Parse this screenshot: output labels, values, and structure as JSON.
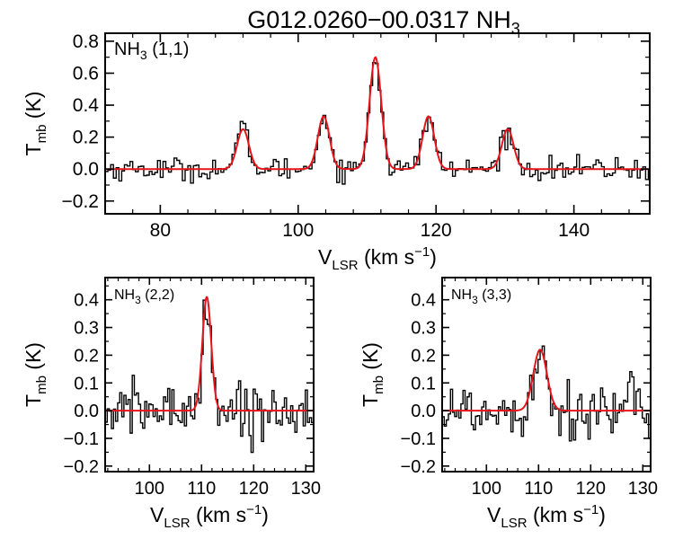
{
  "title": "G012.0260−00.0317 NH",
  "title_sub": "3",
  "colors": {
    "data": "#000000",
    "fit": "#e8141c",
    "axes": "#000000"
  },
  "chart_data": [
    {
      "type": "line",
      "panel": "top",
      "label_main": "NH",
      "label_sub": "3",
      "label_suffix": " (1,1)",
      "ylabel_main": "T",
      "ylabel_sub": "mb",
      "ylabel_suffix": " (K)",
      "xlabel_main": "V",
      "xlabel_sub": "LSR",
      "xlabel_suffix": " (km s",
      "xlabel_sup": "−1",
      "xlabel_close": ")",
      "xlim": [
        72,
        151
      ],
      "ylim": [
        -0.28,
        0.85
      ],
      "xticks": [
        80,
        100,
        120,
        140
      ],
      "xtick_labels": [
        "80",
        "100",
        "120",
        "140"
      ],
      "yticks": [
        -0.2,
        0.0,
        0.2,
        0.4,
        0.6,
        0.8
      ],
      "ytick_labels": [
        "−0.2",
        "0.0",
        "0.2",
        "0.4",
        "0.6",
        "0.8"
      ],
      "channel_width": 0.4,
      "noise_rms": 0.035,
      "fit_components": [
        {
          "center": 92.0,
          "amplitude": 0.25,
          "sigma": 0.85
        },
        {
          "center": 103.7,
          "amplitude": 0.33,
          "sigma": 0.85
        },
        {
          "center": 111.2,
          "amplitude": 0.7,
          "sigma": 0.85
        },
        {
          "center": 118.9,
          "amplitude": 0.33,
          "sigma": 0.85
        },
        {
          "center": 130.4,
          "amplitude": 0.25,
          "sigma": 0.85
        }
      ]
    },
    {
      "type": "line",
      "panel": "bottom-left",
      "label_main": "NH",
      "label_sub": "3",
      "label_suffix": " (2,2)",
      "ylabel_main": "T",
      "ylabel_sub": "mb",
      "ylabel_suffix": " (K)",
      "xlabel_main": "V",
      "xlabel_sub": "LSR",
      "xlabel_suffix": " (km s",
      "xlabel_sup": "−1",
      "xlabel_close": ")",
      "xlim": [
        91.5,
        131.5
      ],
      "ylim": [
        -0.22,
        0.48
      ],
      "xticks": [
        100,
        110,
        120,
        130
      ],
      "xtick_labels": [
        "100",
        "110",
        "120",
        "130"
      ],
      "yticks": [
        -0.2,
        -0.1,
        0.0,
        0.1,
        0.2,
        0.3,
        0.4
      ],
      "ytick_labels": [
        "−0.2",
        "−0.1",
        "0.0",
        "0.1",
        "0.2",
        "0.3",
        "0.4"
      ],
      "channel_width": 0.4,
      "noise_rms": 0.05,
      "fit_components": [
        {
          "center": 111.0,
          "amplitude": 0.41,
          "sigma": 0.85
        }
      ]
    },
    {
      "type": "line",
      "panel": "bottom-right",
      "label_main": "NH",
      "label_sub": "3",
      "label_suffix": " (3,3)",
      "ylabel_main": "T",
      "ylabel_sub": "mb",
      "ylabel_suffix": " (K)",
      "xlabel_main": "V",
      "xlabel_sub": "LSR",
      "xlabel_suffix": " (km s",
      "xlabel_sup": "−1",
      "xlabel_close": ")",
      "xlim": [
        91.5,
        131.5
      ],
      "ylim": [
        -0.22,
        0.48
      ],
      "xticks": [
        100,
        110,
        120,
        130
      ],
      "xtick_labels": [
        "100",
        "110",
        "120",
        "130"
      ],
      "yticks": [
        -0.2,
        -0.1,
        0.0,
        0.1,
        0.2,
        0.3,
        0.4
      ],
      "ytick_labels": [
        "−0.2",
        "−0.1",
        "0.0",
        "0.1",
        "0.2",
        "0.3",
        "0.4"
      ],
      "channel_width": 0.4,
      "noise_rms": 0.055,
      "fit_components": [
        {
          "center": 110.3,
          "amplitude": 0.22,
          "sigma": 1.3
        }
      ]
    }
  ]
}
